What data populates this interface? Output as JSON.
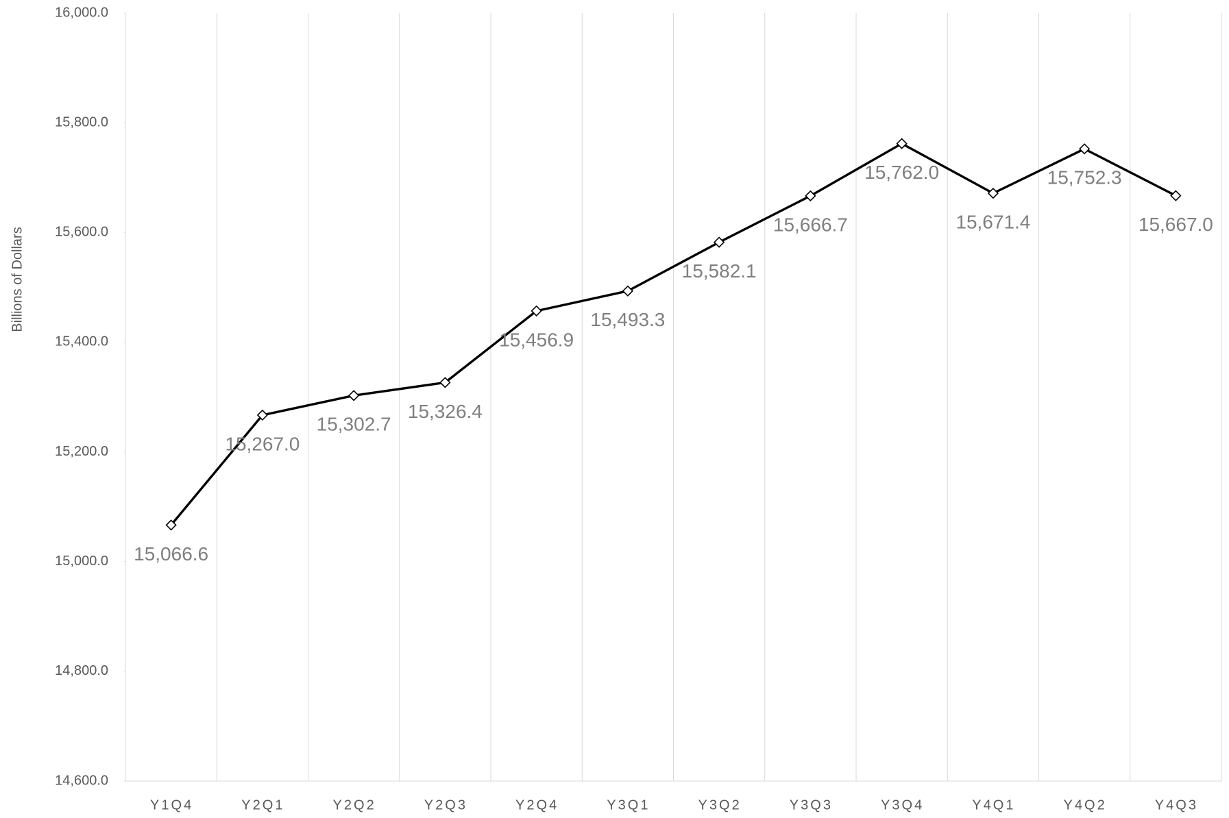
{
  "chart_data": {
    "type": "line",
    "y_axis_label": "Billions of Dollars",
    "categories": [
      "Y1Q4",
      "Y2Q1",
      "Y2Q2",
      "Y2Q3",
      "Y2Q4",
      "Y3Q1",
      "Y3Q2",
      "Y3Q3",
      "Y3Q4",
      "Y4Q1",
      "Y4Q2",
      "Y4Q3"
    ],
    "values": [
      15066.6,
      15267.0,
      15302.7,
      15326.4,
      15456.9,
      15493.3,
      15582.1,
      15666.7,
      15762.0,
      15671.4,
      15752.3,
      15667.0
    ],
    "value_labels": [
      "15,066.6",
      "15,267.0",
      "15,302.7",
      "15,326.4",
      "15,456.9",
      "15,493.3",
      "15,582.1",
      "15,666.7",
      "15,762.0",
      "15,671.4",
      "15,752.3",
      "15,667.0"
    ],
    "color": "#000000",
    "ylim": [
      14600,
      16000
    ],
    "yticks": [
      {
        "value": 14600,
        "label": "14,600.0"
      },
      {
        "value": 14800,
        "label": "14,800.0"
      },
      {
        "value": 15000,
        "label": "15,000.0"
      },
      {
        "value": 15200,
        "label": "15,200.0"
      },
      {
        "value": 15400,
        "label": "15,400.0"
      },
      {
        "value": 15600,
        "label": "15,600.0"
      },
      {
        "value": 15800,
        "label": "15,800.0"
      },
      {
        "value": 16000,
        "label": "16,000.0"
      }
    ],
    "grid": "vertical"
  }
}
